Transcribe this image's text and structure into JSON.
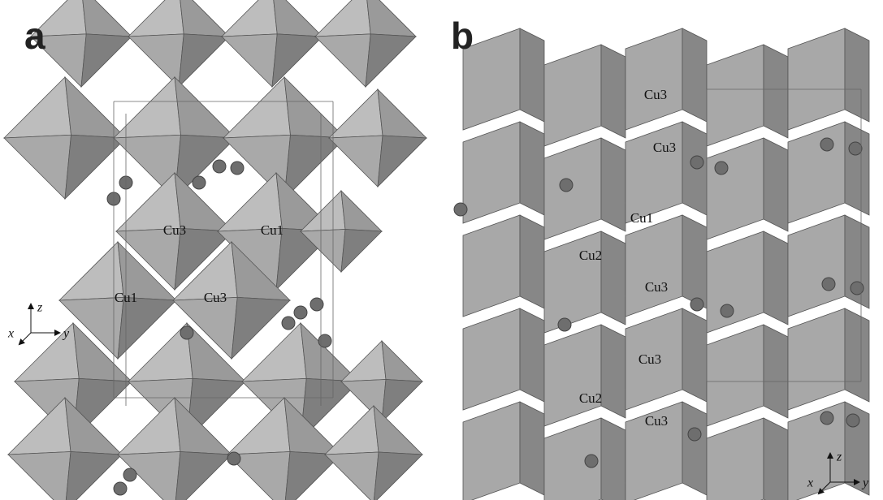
{
  "panels": [
    {
      "label": "a",
      "sites": [
        "Cu3",
        "Cu1",
        "Cu1",
        "Cu3"
      ],
      "axes": {
        "z": "z",
        "x": "x",
        "y": "y"
      }
    },
    {
      "label": "b",
      "sites": [
        "Cu3",
        "Cu3",
        "Cu1",
        "Cu2",
        "Cu3",
        "Cu3",
        "Cu2",
        "Cu3"
      ],
      "axes": {
        "z": "z",
        "x": "x",
        "y": "y"
      }
    }
  ]
}
